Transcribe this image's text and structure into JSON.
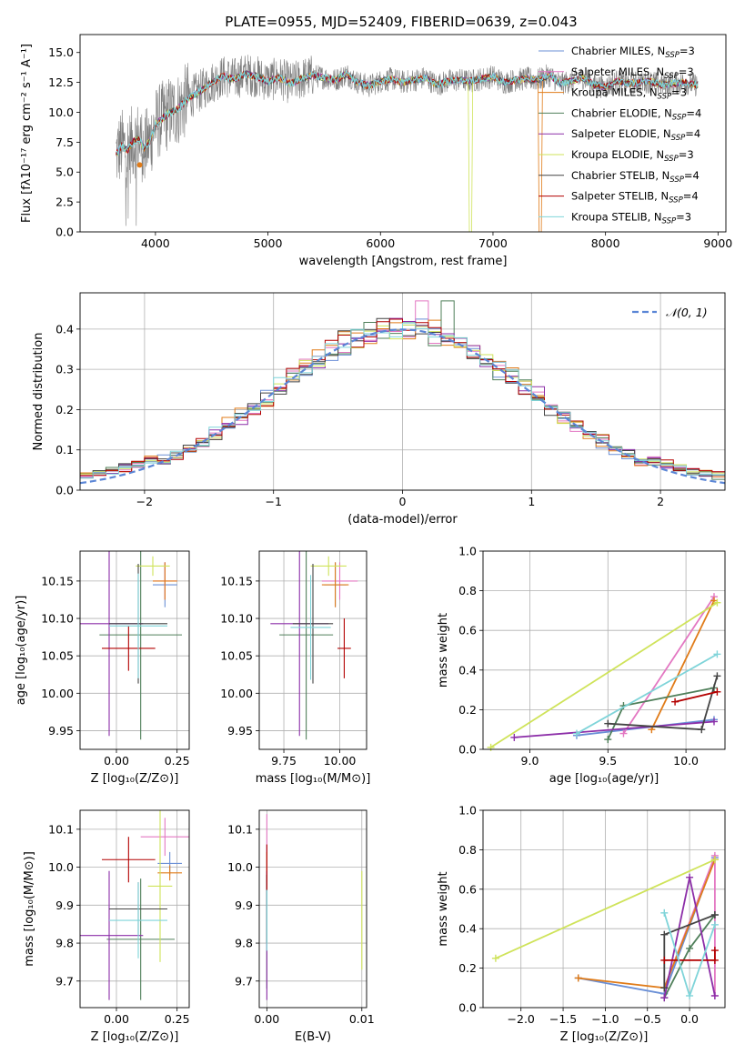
{
  "figure_title": "PLATE=0955, MJD=52409, FIBERID=0639, z=0.043",
  "chart_data": [
    {
      "id": "spectrum",
      "type": "line",
      "title": "PLATE=0955, MJD=52409, FIBERID=0639, z=0.043",
      "xlabel": "wavelength [Angstrom, rest frame]",
      "ylabel": "Flux [fλ10⁻¹⁷ erg cm⁻² s⁻¹ A⁻¹]",
      "xlim": [
        3330,
        9070
      ],
      "ylim": [
        0,
        16.5
      ],
      "xticks": [
        4000,
        5000,
        6000,
        7000,
        8000,
        9000
      ],
      "yticks": [
        0.0,
        2.5,
        5.0,
        7.5,
        10.0,
        12.5,
        15.0
      ],
      "grid": false,
      "legend_position": "right",
      "legend": [
        "Chabrier MILES, N_SSP=3",
        "Salpeter MILES, N_SSP=3",
        "Kroupa MILES, N_SSP=3",
        "Chabrier ELODIE, N_SSP=4",
        "Salpeter ELODIE, N_SSP=4",
        "Kroupa ELODIE, N_SSP=3",
        "Chabrier STELIB, N_SSP=4",
        "Salpeter STELIB, N_SSP=4",
        "Kroupa STELIB, N_SSP=3"
      ],
      "data_curve": {
        "x": [
          3650,
          3700,
          3750,
          3800,
          3850,
          3900,
          3950,
          4000,
          4100,
          4200,
          4300,
          4400,
          4500,
          4600,
          4700,
          4800,
          4900,
          5000,
          5100,
          5200,
          5300,
          5400,
          5500,
          5600,
          5700,
          5800,
          5900,
          6000,
          6100,
          6200,
          6300,
          6400,
          6500,
          6600,
          6700,
          6800,
          6900,
          7000,
          7100,
          7200,
          7300,
          7400,
          7500,
          7600,
          7700,
          7800,
          7900,
          8000,
          8100,
          8200,
          8300,
          8400,
          8500,
          8600,
          8700,
          8800
        ],
        "y": [
          6.5,
          7.2,
          6.8,
          7.5,
          7.8,
          7.0,
          7.6,
          9.0,
          9.8,
          10.3,
          11.2,
          11.8,
          12.5,
          13.0,
          12.8,
          13.2,
          13.0,
          12.6,
          12.9,
          12.4,
          12.8,
          13.1,
          12.9,
          12.7,
          13.2,
          12.5,
          12.2,
          12.6,
          12.8,
          12.5,
          12.7,
          12.9,
          12.3,
          12.6,
          12.7,
          12.6,
          12.8,
          13.0,
          12.5,
          12.7,
          12.8,
          12.7,
          13.1,
          12.4,
          12.6,
          12.9,
          12.3,
          12.1,
          12.6,
          12.4,
          12.5,
          12.6,
          12.3,
          12.4,
          12.5,
          12.3
        ]
      }
    },
    {
      "id": "residuals",
      "type": "step",
      "xlabel": "(data-model)/error",
      "ylabel": "Normed distribution",
      "xlim": [
        -2.5,
        2.5
      ],
      "ylim": [
        0,
        0.49
      ],
      "xticks": [
        -2,
        -1,
        0,
        1,
        2
      ],
      "yticks": [
        0.0,
        0.1,
        0.2,
        0.3,
        0.4
      ],
      "grid": true,
      "legend_position": "top-right",
      "legend": [
        "𝒩(0, 1)"
      ],
      "bin_width": 0.1
    },
    {
      "id": "age-vs-Z",
      "type": "scatter",
      "xlabel": "Z [log₁₀(Z/Z⊙)]",
      "ylabel": "age  [log₁₀(age/yr)]",
      "xlim": [
        -0.15,
        0.3
      ],
      "ylim": [
        9.925,
        10.19
      ],
      "xticks": [
        "0.00",
        "0.25"
      ],
      "xtick_values": [
        0.0,
        0.25
      ],
      "yticks": [
        "9.95",
        "10.00",
        "10.05",
        "10.10",
        "10.15"
      ],
      "ytick_values": [
        9.95,
        10.0,
        10.05,
        10.1,
        10.15
      ],
      "grid": true,
      "points": [
        {
          "x": 0.2,
          "y": 10.145,
          "xerr": 0.05,
          "yerr": 0.03
        },
        {
          "x": 0.2,
          "y": 10.15,
          "xerr": 0.05,
          "yerr": 0.025
        },
        {
          "x": 0.2,
          "y": 10.15,
          "xerr": 0.05,
          "yerr": 0.025
        },
        {
          "x": 0.1,
          "y": 10.078,
          "xerr": 0.17,
          "yerr": 0.14
        },
        {
          "x": -0.03,
          "y": 10.093,
          "xerr": 0.14,
          "yerr": 0.15
        },
        {
          "x": 0.15,
          "y": 10.17,
          "xerr": 0.07,
          "yerr": 0.013
        },
        {
          "x": 0.09,
          "y": 10.093,
          "xerr": 0.12,
          "yerr": 0.08
        },
        {
          "x": 0.05,
          "y": 10.06,
          "xerr": 0.11,
          "yerr": 0.03
        },
        {
          "x": 0.09,
          "y": 10.09,
          "xerr": 0.12,
          "yerr": 0.07
        }
      ]
    },
    {
      "id": "age-vs-mass",
      "type": "scatter",
      "xlabel": "mass [log₁₀(M/M⊙)]",
      "ylabel": "",
      "xlim": [
        9.64,
        10.12
      ],
      "ylim": [
        9.925,
        10.19
      ],
      "xticks": [
        "9.75",
        "10.00"
      ],
      "xtick_values": [
        9.75,
        10.0
      ],
      "yticks": [
        "9.95",
        "10.00",
        "10.05",
        "10.10",
        "10.15"
      ],
      "ytick_values": [
        9.95,
        10.0,
        10.05,
        10.1,
        10.15
      ],
      "grid": true,
      "points": [
        {
          "x": 9.98,
          "y": 10.145,
          "xerr": 0.05,
          "yerr": 0.03
        },
        {
          "x": 10.0,
          "y": 10.15,
          "xerr": 0.08,
          "yerr": 0.025
        },
        {
          "x": 9.98,
          "y": 10.145,
          "xerr": 0.06,
          "yerr": 0.03
        },
        {
          "x": 9.85,
          "y": 10.078,
          "xerr": 0.12,
          "yerr": 0.14
        },
        {
          "x": 9.82,
          "y": 10.093,
          "xerr": 0.13,
          "yerr": 0.15
        },
        {
          "x": 9.95,
          "y": 10.17,
          "xerr": 0.08,
          "yerr": 0.013
        },
        {
          "x": 9.88,
          "y": 10.093,
          "xerr": 0.09,
          "yerr": 0.08
        },
        {
          "x": 10.02,
          "y": 10.06,
          "xerr": 0.03,
          "yerr": 0.04
        },
        {
          "x": 9.87,
          "y": 10.088,
          "xerr": 0.09,
          "yerr": 0.07
        }
      ]
    },
    {
      "id": "massweight-vs-age",
      "type": "line",
      "xlabel": "age  [log₁₀(age/yr)]",
      "ylabel": "mass weight",
      "xlim": [
        8.7,
        10.25
      ],
      "ylim": [
        0,
        1.0
      ],
      "xticks": [
        "9.0",
        "9.5",
        "10.0"
      ],
      "xtick_values": [
        9.0,
        9.5,
        10.0
      ],
      "yticks": [
        "0.0",
        "0.2",
        "0.4",
        "0.6",
        "0.8",
        "1.0"
      ],
      "ytick_values": [
        0.0,
        0.2,
        0.4,
        0.6,
        0.8,
        1.0
      ],
      "grid": true,
      "series": [
        {
          "x": [
            9.3,
            10.18
          ],
          "y": [
            0.07,
            0.15
          ]
        },
        {
          "x": [
            9.6,
            10.18
          ],
          "y": [
            0.08,
            0.77
          ]
        },
        {
          "x": [
            9.78,
            10.18
          ],
          "y": [
            0.1,
            0.75
          ]
        },
        {
          "x": [
            9.5,
            9.6,
            10.18
          ],
          "y": [
            0.05,
            0.22,
            0.31
          ]
        },
        {
          "x": [
            8.9,
            10.18
          ],
          "y": [
            0.06,
            0.14
          ]
        },
        {
          "x": [
            8.75,
            10.2
          ],
          "y": [
            0.01,
            0.74
          ]
        },
        {
          "x": [
            9.5,
            10.1,
            10.2
          ],
          "y": [
            0.13,
            0.1,
            0.37
          ]
        },
        {
          "x": [
            9.93,
            10.2
          ],
          "y": [
            0.24,
            0.29
          ]
        },
        {
          "x": [
            9.3,
            10.2
          ],
          "y": [
            0.08,
            0.48
          ]
        }
      ]
    },
    {
      "id": "mass-vs-Z",
      "type": "scatter",
      "xlabel": "Z [log₁₀(Z/Z⊙)]",
      "ylabel": "mass [log₁₀(M/M⊙)]",
      "xlim": [
        -0.15,
        0.3
      ],
      "ylim": [
        9.63,
        10.15
      ],
      "xticks": [
        "0.00",
        "0.25"
      ],
      "xtick_values": [
        0.0,
        0.25
      ],
      "yticks": [
        "9.7",
        "9.8",
        "9.9",
        "10.0",
        "10.1"
      ],
      "ytick_values": [
        9.7,
        9.8,
        9.9,
        10.0,
        10.1
      ],
      "grid": true,
      "points": [
        {
          "x": 0.22,
          "y": 10.01,
          "xerr": 0.05,
          "yerr": 0.03
        },
        {
          "x": 0.2,
          "y": 10.08,
          "xerr": 0.1,
          "yerr": 0.05
        },
        {
          "x": 0.22,
          "y": 9.985,
          "xerr": 0.05,
          "yerr": 0.02
        },
        {
          "x": 0.1,
          "y": 9.81,
          "xerr": 0.14,
          "yerr": 0.16
        },
        {
          "x": -0.03,
          "y": 9.82,
          "xerr": 0.14,
          "yerr": 0.17
        },
        {
          "x": 0.18,
          "y": 9.95,
          "xerr": 0.05,
          "yerr": 0.2
        },
        {
          "x": 0.09,
          "y": 9.89,
          "xerr": 0.12,
          "yerr": 0.07
        },
        {
          "x": 0.05,
          "y": 10.02,
          "xerr": 0.11,
          "yerr": 0.06
        },
        {
          "x": 0.09,
          "y": 9.86,
          "xerr": 0.12,
          "yerr": 0.1
        }
      ]
    },
    {
      "id": "mass-vs-EBV",
      "type": "scatter",
      "xlabel": "E(B-V)",
      "ylabel": "",
      "xlim": [
        -0.0008,
        0.0105
      ],
      "ylim": [
        9.63,
        10.15
      ],
      "xticks": [
        "0.00",
        "0.01"
      ],
      "xtick_values": [
        0.0,
        0.01
      ],
      "yticks": [
        "9.7",
        "9.8",
        "9.9",
        "10.0",
        "10.1"
      ],
      "ytick_values": [
        9.7,
        9.8,
        9.9,
        10.0,
        10.1
      ],
      "grid": true,
      "points": [
        {
          "x": 0.0,
          "y": 10.0,
          "xerr": 0.0,
          "yerr": 0.06
        },
        {
          "x": 0.0,
          "y": 10.05,
          "xerr": 0.0,
          "yerr": 0.09
        },
        {
          "x": 0.0,
          "y": 9.99,
          "xerr": 0.0,
          "yerr": 0.05
        },
        {
          "x": 0.0,
          "y": 9.83,
          "xerr": 0.0,
          "yerr": 0.15
        },
        {
          "x": 0.0,
          "y": 9.82,
          "xerr": 0.0,
          "yerr": 0.17
        },
        {
          "x": 0.01,
          "y": 9.86,
          "xerr": 0.0,
          "yerr": 0.13
        },
        {
          "x": 0.0,
          "y": 9.89,
          "xerr": 0.0,
          "yerr": 0.09
        },
        {
          "x": 0.0,
          "y": 10.0,
          "xerr": 0.0,
          "yerr": 0.06
        },
        {
          "x": 0.0,
          "y": 9.86,
          "xerr": 0.0,
          "yerr": 0.08
        }
      ]
    },
    {
      "id": "massweight-vs-Z",
      "type": "line",
      "xlabel": "Z [log₁₀(Z/Z⊙)]",
      "ylabel": "mass weight",
      "xlim": [
        -2.45,
        0.42
      ],
      "ylim": [
        0,
        1.0
      ],
      "xticks": [
        "−2.0",
        "−1.5",
        "−1.0",
        "−0.5",
        "0.0"
      ],
      "xtick_values": [
        -2.0,
        -1.5,
        -1.0,
        -0.5,
        0.0
      ],
      "yticks": [
        "0.0",
        "0.2",
        "0.4",
        "0.6",
        "0.8",
        "1.0"
      ],
      "ytick_values": [
        0.0,
        0.2,
        0.4,
        0.6,
        0.8,
        1.0
      ],
      "grid": true,
      "series": [
        {
          "x": [
            -1.32,
            -0.3,
            0.3
          ],
          "y": [
            0.15,
            0.07,
            0.76
          ]
        },
        {
          "x": [
            -0.3,
            0.3,
            0.3
          ],
          "y": [
            0.1,
            0.77,
            0.06
          ]
        },
        {
          "x": [
            -1.32,
            -0.3,
            0.3
          ],
          "y": [
            0.15,
            0.1,
            0.75
          ]
        },
        {
          "x": [
            -0.3,
            0.0,
            0.3
          ],
          "y": [
            0.05,
            0.3,
            0.47
          ]
        },
        {
          "x": [
            -0.3,
            0.0,
            0.3
          ],
          "y": [
            0.05,
            0.66,
            0.06
          ]
        },
        {
          "x": [
            -2.3,
            0.3
          ],
          "y": [
            0.25,
            0.75
          ]
        },
        {
          "x": [
            -0.3,
            -0.3,
            0.3
          ],
          "y": [
            0.1,
            0.37,
            0.47
          ]
        },
        {
          "x": [
            -0.3,
            0.3,
            0.3
          ],
          "y": [
            0.24,
            0.24,
            0.29
          ]
        },
        {
          "x": [
            -0.3,
            0.0,
            0.3
          ],
          "y": [
            0.48,
            0.06,
            0.42
          ]
        }
      ]
    }
  ],
  "series_colors": [
    "#6a8fd6",
    "#e377c2",
    "#e07b18",
    "#4f7f5a",
    "#8c2ea8",
    "#cfe35a",
    "#444444",
    "#b30000",
    "#7fd4d9"
  ],
  "data_color": "#7f7f7f",
  "normal_color": "#5b86d6"
}
